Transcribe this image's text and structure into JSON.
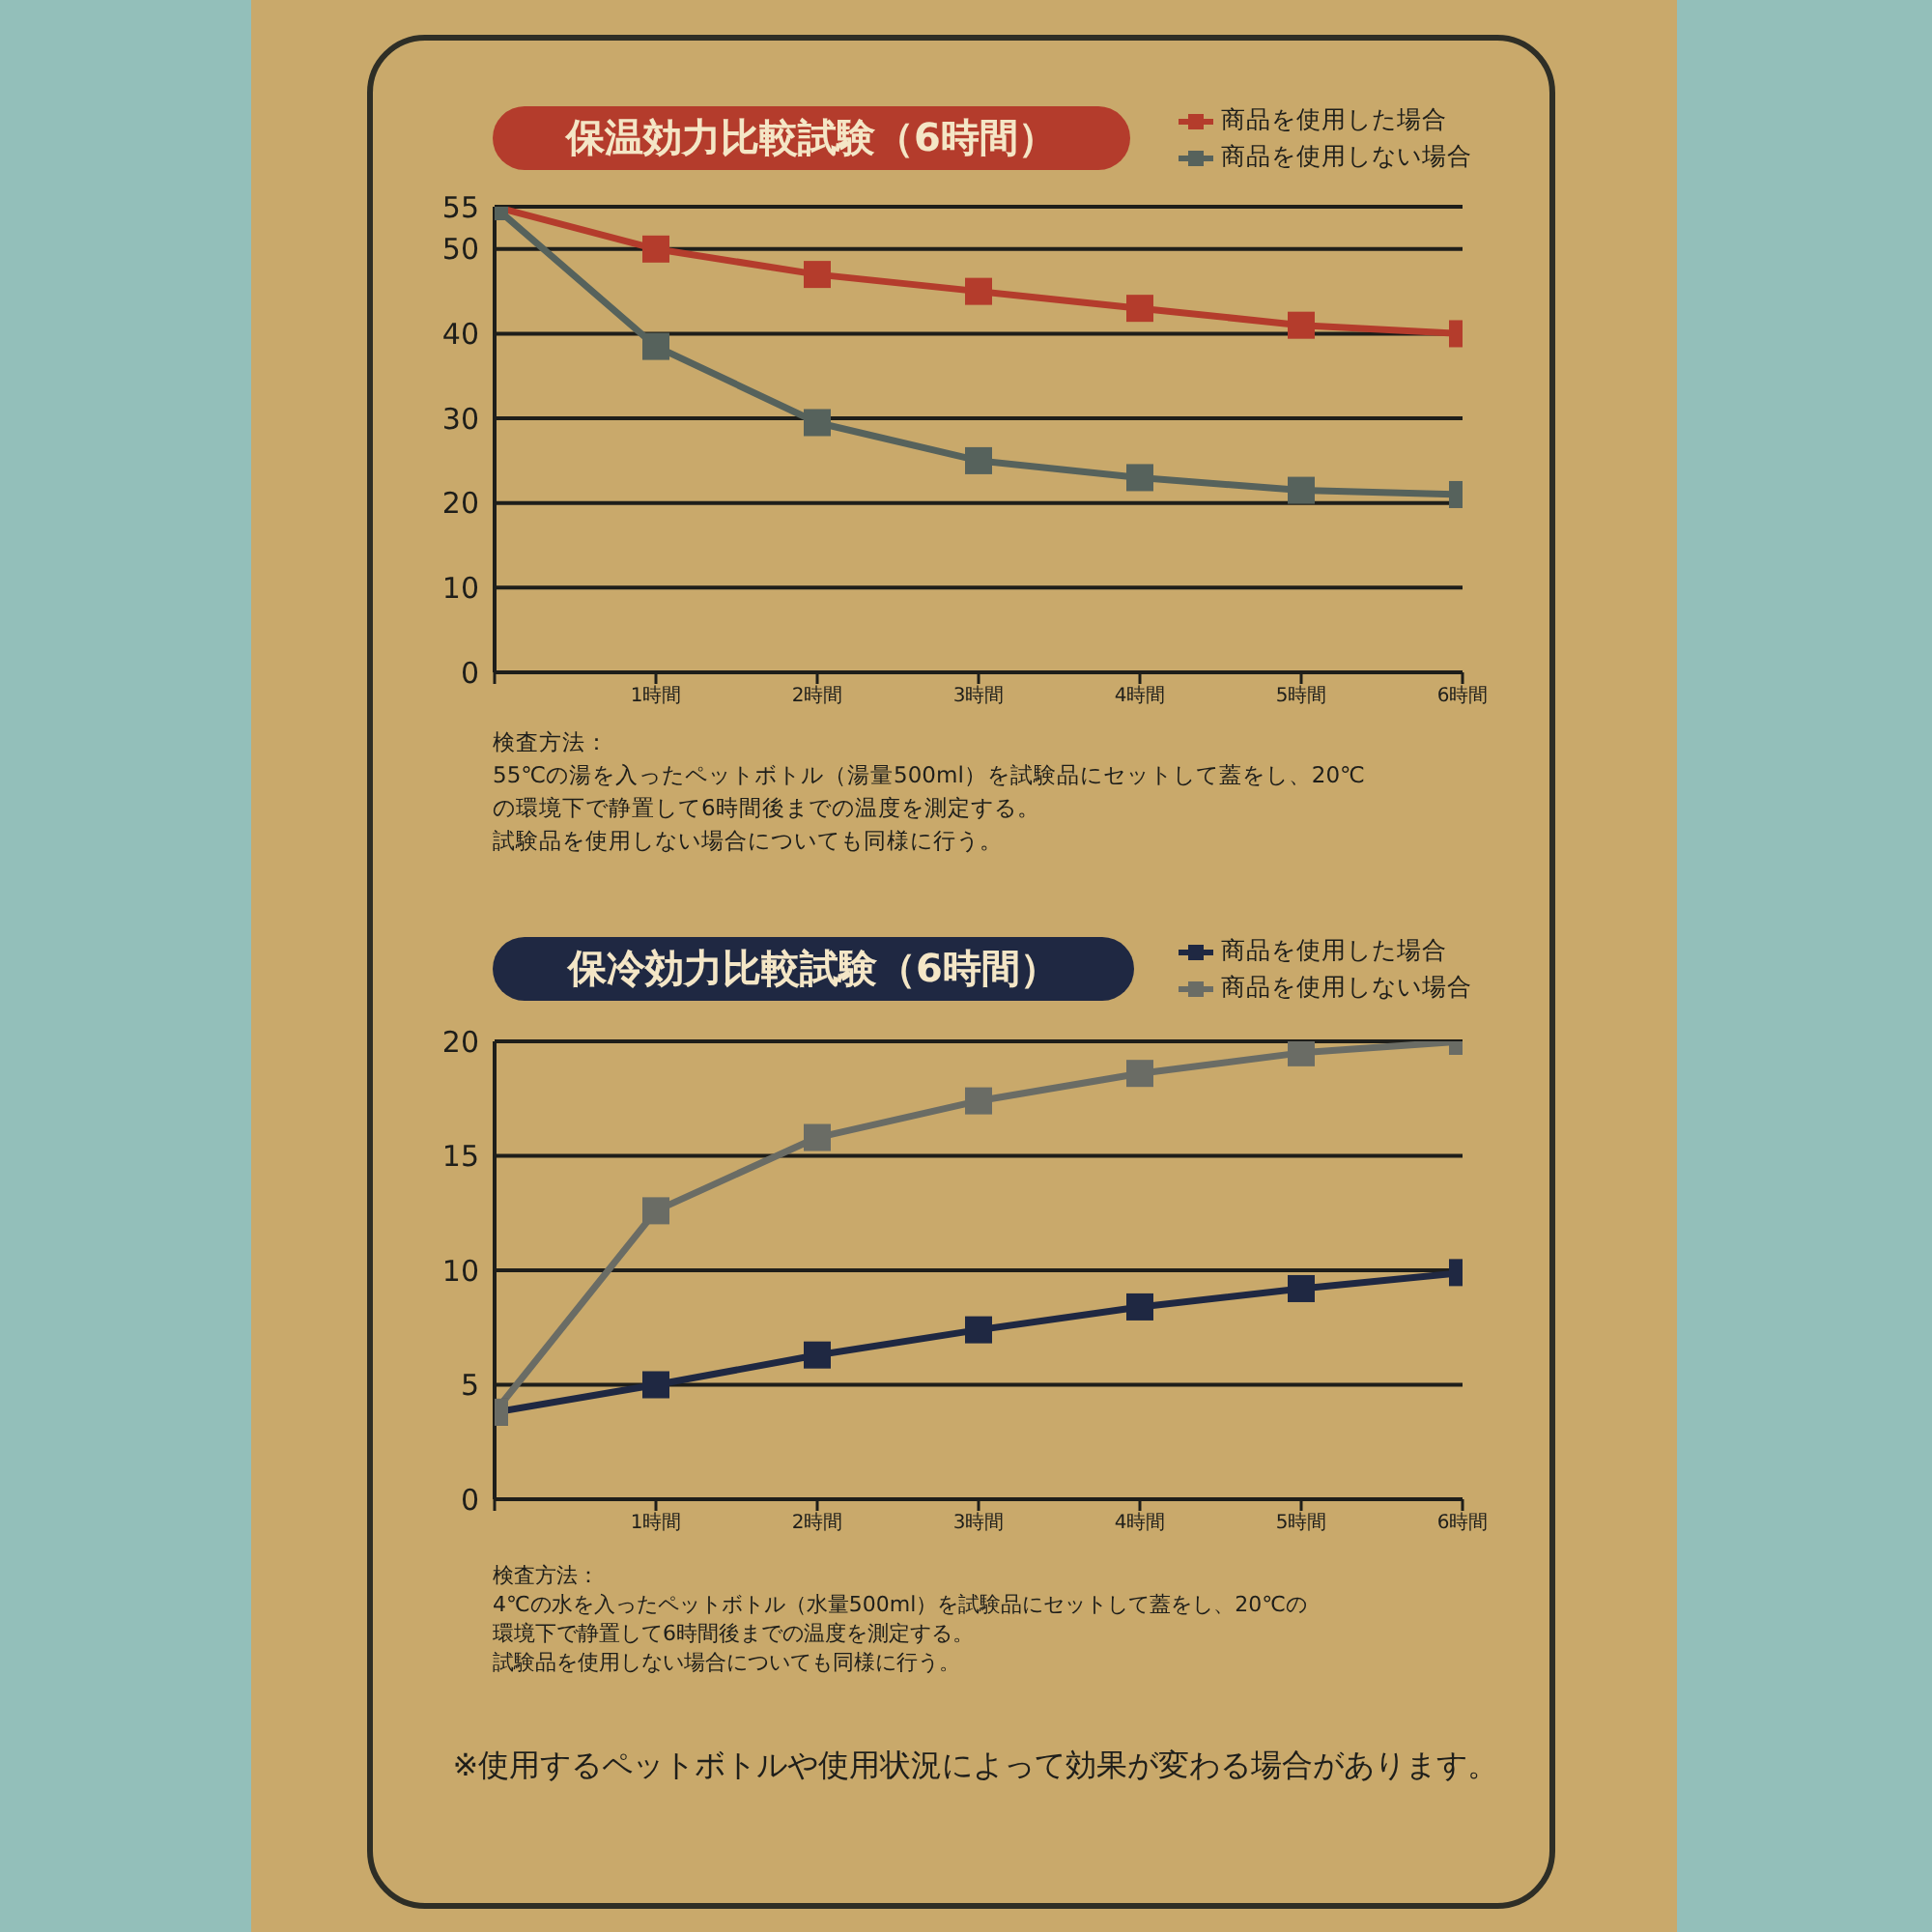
{
  "chart_data": [
    {
      "type": "line",
      "title": "保温効力比較試験（6時間）",
      "categories": [
        null,
        "1時間",
        "2時間",
        "3時間",
        "4時間",
        "5時間",
        "6時間"
      ],
      "series": [
        {
          "name": "商品を使用した場合",
          "color": "#b43c2c",
          "values": [
            55,
            50,
            47,
            45,
            43,
            41,
            40
          ]
        },
        {
          "name": "商品を使用しない場合",
          "color": "#56625c",
          "values": [
            55,
            38.5,
            29.5,
            25,
            23,
            21.5,
            21
          ]
        }
      ],
      "ylim": [
        0,
        55
      ],
      "yticks": [
        0,
        10,
        20,
        30,
        40,
        50,
        55
      ],
      "grid": "y",
      "legend": "top right",
      "marker": "square",
      "annotations": [
        "検査方法：",
        "55℃の湯を入ったペットボトル（湯量500ml）を試験品にセットして蓋をし、20℃",
        "の環境下で静置して6時間後までの温度を測定する。",
        "試験品を使用しない場合についても同様に行う。"
      ]
    },
    {
      "type": "line",
      "title": "保冷効力比較試験（6時間）",
      "categories": [
        null,
        "1時間",
        "2時間",
        "3時間",
        "4時間",
        "5時間",
        "6時間"
      ],
      "series": [
        {
          "name": "商品を使用した場合",
          "color": "#1f2842",
          "values": [
            3.8,
            5,
            6.3,
            7.4,
            8.4,
            9.2,
            9.9
          ]
        },
        {
          "name": "商品を使用しない場合",
          "color": "#6a6c65",
          "values": [
            3.8,
            12.6,
            15.8,
            17.4,
            18.6,
            19.5,
            20
          ]
        }
      ],
      "ylim": [
        0,
        20
      ],
      "yticks": [
        0,
        5,
        10,
        15,
        20
      ],
      "grid": "y",
      "legend": "top right",
      "marker": "square",
      "annotations": [
        "検査方法：",
        "4℃の水を入ったペットボトル（水量500ml）を試験品にセットして蓋をし、20℃の",
        "環境下で静置して6時間後までの温度を測定する。",
        "試験品を使用しない場合についても同様に行う。",
        "※使用するペットボトルや使用状況によって効果が変わる場合があります。"
      ]
    }
  ]
}
